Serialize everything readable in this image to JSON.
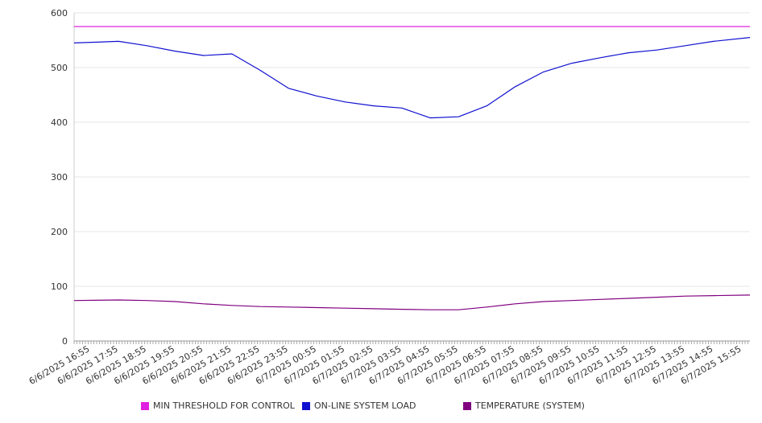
{
  "chart_data": {
    "type": "line",
    "ylim": [
      0,
      600
    ],
    "yticks": [
      0,
      100,
      200,
      300,
      400,
      500,
      600
    ],
    "grid": true,
    "legend_position": "bottom",
    "categories": [
      "6/6/2025 16:55",
      "6/6/2025 17:55",
      "6/6/2025 18:55",
      "6/6/2025 19:55",
      "6/6/2025 20:55",
      "6/6/2025 21:55",
      "6/6/2025 22:55",
      "6/6/2025 23:55",
      "6/7/2025 00:55",
      "6/7/2025 01:55",
      "6/7/2025 02:55",
      "6/7/2025 03:55",
      "6/7/2025 04:55",
      "6/7/2025 05:55",
      "6/7/2025 06:55",
      "6/7/2025 07:55",
      "6/7/2025 08:55",
      "6/7/2025 09:55",
      "6/7/2025 10:55",
      "6/7/2025 11:55",
      "6/7/2025 12:55",
      "6/7/2025 13:55",
      "6/7/2025 14:55",
      "6/7/2025 15:55"
    ],
    "series": [
      {
        "name": "MIN THRESHOLD FOR CONTROL",
        "color": "#e020e0",
        "values": [
          575,
          575,
          575,
          575,
          575,
          575,
          575,
          575,
          575,
          575,
          575,
          575,
          575,
          575,
          575,
          575,
          575,
          575,
          575,
          575,
          575,
          575,
          575,
          575
        ]
      },
      {
        "name": "ON-LINE SYSTEM LOAD",
        "color": "#1010d0",
        "values": [
          545,
          548,
          540,
          530,
          522,
          525,
          495,
          462,
          448,
          437,
          430,
          426,
          408,
          410,
          430,
          465,
          492,
          508,
          518,
          527,
          532,
          540,
          548,
          555
        ]
      },
      {
        "name": "TEMPERATURE (SYSTEM)",
        "color": "#800080",
        "values": [
          74,
          75,
          74,
          72,
          68,
          65,
          63,
          62,
          61,
          60,
          59,
          58,
          57,
          57,
          62,
          68,
          72,
          74,
          76,
          78,
          80,
          82,
          83,
          84
        ]
      }
    ]
  }
}
